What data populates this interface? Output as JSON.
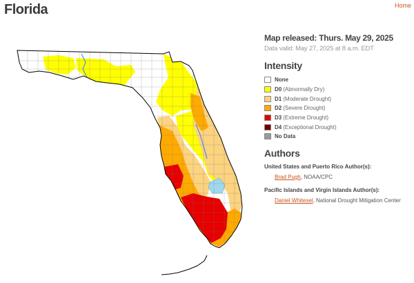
{
  "header": {
    "title": "Florida",
    "home_label": "Home"
  },
  "map": {
    "state": "Florida",
    "map_type": "drought-monitor"
  },
  "info": {
    "released": "Map released: Thurs. May 29, 2025",
    "valid": "Data valid: May 27, 2025 at 8 a.m. EDT"
  },
  "intensity": {
    "heading": "Intensity",
    "items": [
      {
        "code": "None",
        "desc": "",
        "color": "#ffffff"
      },
      {
        "code": "D0",
        "desc": "(Abnormally Dry)",
        "color": "#ffff00"
      },
      {
        "code": "D1",
        "desc": "(Moderate Drought)",
        "color": "#fcd37f"
      },
      {
        "code": "D2",
        "desc": "(Severe Drought)",
        "color": "#ffaa00"
      },
      {
        "code": "D3",
        "desc": "(Extreme Drought)",
        "color": "#e60000"
      },
      {
        "code": "D4",
        "desc": "(Exceptional Drought)",
        "color": "#730000"
      },
      {
        "code": "No Data",
        "desc": "",
        "color": "#9b9b9b"
      }
    ]
  },
  "authors": {
    "heading": "Authors",
    "us_label": "United States and Puerto Rico Author(s):",
    "us_name": "Brad Pugh",
    "us_org": ", NOAA/CPC",
    "pacific_label": "Pacific Islands and Virgin Islands Author(s):",
    "pacific_name": "Daniel Whitesel",
    "pacific_org": ", National Drought Mitigation Center"
  }
}
